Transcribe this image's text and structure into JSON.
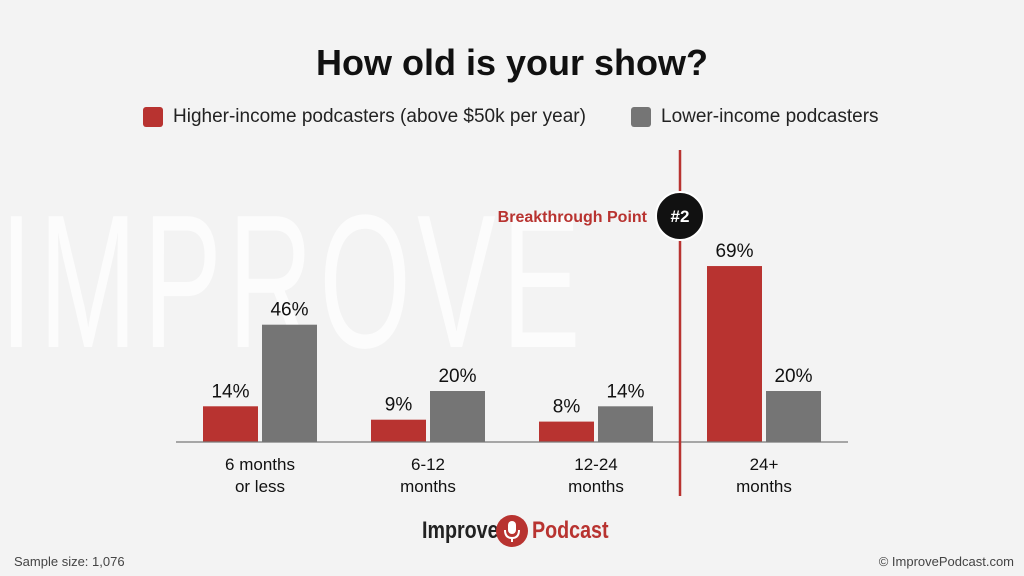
{
  "watermark": "IMPROVE PODCAST",
  "chart_data": {
    "type": "bar",
    "title": "How old is your show?",
    "categories": [
      [
        "6 months",
        "or less"
      ],
      [
        "6-12",
        "months"
      ],
      [
        "12-24",
        "months"
      ],
      [
        "24+",
        "months"
      ]
    ],
    "series": [
      {
        "name": "Higher-income podcasters (above $50k per year)",
        "values": [
          14,
          8.75,
          8,
          69
        ],
        "labels": [
          "14%",
          "9%",
          "8%",
          "69%"
        ],
        "color": "#b83330"
      },
      {
        "name": "Lower-income podcasters",
        "values": [
          46,
          20,
          14,
          20
        ],
        "labels": [
          "46%",
          "20%",
          "14%",
          "20%"
        ],
        "color": "#757575"
      }
    ],
    "ylim": [
      0,
      100
    ],
    "annotation": {
      "label": "Breakthrough Point",
      "badge": "#2",
      "after_category_index": 2,
      "color": "#b83330"
    }
  },
  "footer": {
    "sample": "Sample size: 1,076",
    "copyright": "© ImprovePodcast.com",
    "logo_left": "Improve",
    "logo_right": "Podcast"
  },
  "colors": {
    "accent": "#b83330",
    "gray": "#757575",
    "background": "#f3f3f3"
  }
}
